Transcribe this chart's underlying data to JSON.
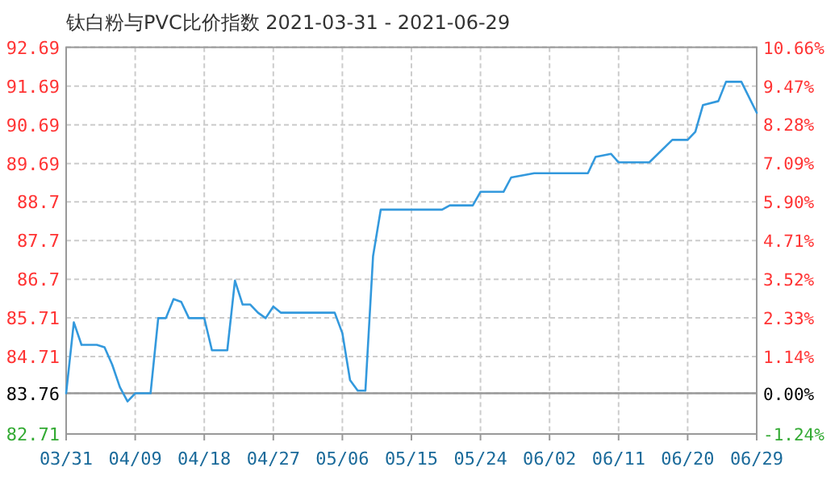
{
  "chart_data": {
    "type": "line",
    "title": "钛白粉与PVC比价指数 2021-03-31 - 2021-06-29",
    "x": [
      "2021-03-31",
      "2021-04-01",
      "2021-04-02",
      "2021-04-04",
      "2021-04-05",
      "2021-04-06",
      "2021-04-07",
      "2021-04-08",
      "2021-04-09",
      "2021-04-11",
      "2021-04-12",
      "2021-04-13",
      "2021-04-14",
      "2021-04-15",
      "2021-04-16",
      "2021-04-18",
      "2021-04-19",
      "2021-04-21",
      "2021-04-22",
      "2021-04-23",
      "2021-04-24",
      "2021-04-25",
      "2021-04-26",
      "2021-04-27",
      "2021-04-28",
      "2021-05-05",
      "2021-05-06",
      "2021-05-07",
      "2021-05-08",
      "2021-05-09",
      "2021-05-10",
      "2021-05-11",
      "2021-05-19",
      "2021-05-20",
      "2021-05-23",
      "2021-05-24",
      "2021-05-27",
      "2021-05-28",
      "2021-05-31",
      "2021-06-07",
      "2021-06-08",
      "2021-06-10",
      "2021-06-11",
      "2021-06-15",
      "2021-06-18",
      "2021-06-20",
      "2021-06-21",
      "2021-06-22",
      "2021-06-24",
      "2021-06-25",
      "2021-06-27",
      "2021-06-29"
    ],
    "series": [
      {
        "color": "#3399dd",
        "values": [
          83.76,
          85.59,
          85.01,
          85.01,
          84.95,
          84.5,
          83.92,
          83.55,
          83.76,
          83.76,
          85.7,
          85.7,
          86.19,
          86.12,
          85.7,
          85.7,
          84.87,
          84.87,
          86.67,
          86.05,
          86.05,
          85.84,
          85.7,
          86.0,
          85.84,
          85.84,
          85.31,
          84.1,
          83.83,
          83.83,
          87.3,
          88.5,
          88.5,
          88.61,
          88.61,
          88.96,
          88.96,
          89.33,
          89.44,
          89.44,
          89.86,
          89.94,
          89.72,
          89.72,
          90.3,
          90.3,
          90.51,
          91.2,
          91.3,
          91.8,
          91.8,
          91.0
        ]
      }
    ],
    "xlim": [
      "2021-03-31",
      "2021-06-29"
    ],
    "xticks": [
      {
        "value": "2021-03-31",
        "label": "03/31"
      },
      {
        "value": "2021-04-09",
        "label": "04/09"
      },
      {
        "value": "2021-04-18",
        "label": "04/18"
      },
      {
        "value": "2021-04-27",
        "label": "04/27"
      },
      {
        "value": "2021-05-06",
        "label": "05/06"
      },
      {
        "value": "2021-05-15",
        "label": "05/15"
      },
      {
        "value": "2021-05-24",
        "label": "05/24"
      },
      {
        "value": "2021-06-02",
        "label": "06/02"
      },
      {
        "value": "2021-06-11",
        "label": "06/11"
      },
      {
        "value": "2021-06-20",
        "label": "06/20"
      },
      {
        "value": "2021-06-29",
        "label": "06/29"
      }
    ],
    "ylim": [
      82.71,
      92.69
    ],
    "yticks": [
      82.71,
      83.76,
      84.71,
      85.71,
      86.7,
      87.7,
      88.7,
      89.69,
      90.69,
      91.69,
      92.69
    ],
    "y2lim": [
      -1.24,
      10.66
    ],
    "y2ticks": [
      {
        "value": -1.24,
        "label": "-1.24%"
      },
      {
        "value": 0,
        "label": "0.00%"
      },
      {
        "value": 1.14,
        "label": "1.14%"
      },
      {
        "value": 2.33,
        "label": "2.33%"
      },
      {
        "value": 3.52,
        "label": "3.52%"
      },
      {
        "value": 4.71,
        "label": "4.71%"
      },
      {
        "value": 5.9,
        "label": "5.90%"
      },
      {
        "value": 7.09,
        "label": "7.09%"
      },
      {
        "value": 8.28,
        "label": "8.28%"
      },
      {
        "value": 9.47,
        "label": "9.47%"
      },
      {
        "value": 10.66,
        "label": "10.66%"
      }
    ],
    "ref_lines": [
      {
        "axis": "y",
        "value": 83.76,
        "label": null,
        "color": "#999999"
      }
    ],
    "grid": true,
    "line_style": "solid",
    "marker": "none"
  }
}
